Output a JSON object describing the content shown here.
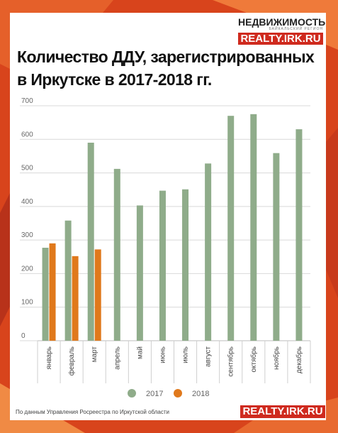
{
  "brand": {
    "name": "НЕДВИЖИМОСТЬ",
    "tagline": "БАЙКАЛЬСКИЙ РЕГИОН",
    "url": "REALTY.IRK.RU"
  },
  "footer": {
    "source_note": "По данным Управления Росреестра по Иркутской области",
    "url": "REALTY.IRK.RU"
  },
  "colors": {
    "series_2017": "#8fac8a",
    "series_2018": "#e0791c",
    "background": "#d8441c",
    "brand_red": "#cf2a1e"
  },
  "chart_data": {
    "type": "bar",
    "title_lines": [
      "Количество ДДУ, зарегистрированных",
      "в Иркутске в 2017-2018 гг."
    ],
    "categories": [
      "январь",
      "февраль",
      "март",
      "апрель",
      "май",
      "июнь",
      "июль",
      "август",
      "сентябрь",
      "октябрь",
      "ноябрь",
      "декабрь"
    ],
    "series": [
      {
        "name": "2017",
        "color": "#8fac8a",
        "values": [
          277,
          358,
          590,
          512,
          403,
          447,
          451,
          528,
          670,
          675,
          559,
          630
        ]
      },
      {
        "name": "2018",
        "color": "#e0791c",
        "values": [
          290,
          252,
          272,
          null,
          null,
          null,
          null,
          null,
          null,
          null,
          null,
          null
        ]
      }
    ],
    "yticks": [
      0,
      100,
      200,
      300,
      400,
      500,
      600,
      700
    ],
    "ylim": [
      0,
      700
    ],
    "grid": true,
    "legend_position": "bottom",
    "xlabel": "",
    "ylabel": ""
  }
}
